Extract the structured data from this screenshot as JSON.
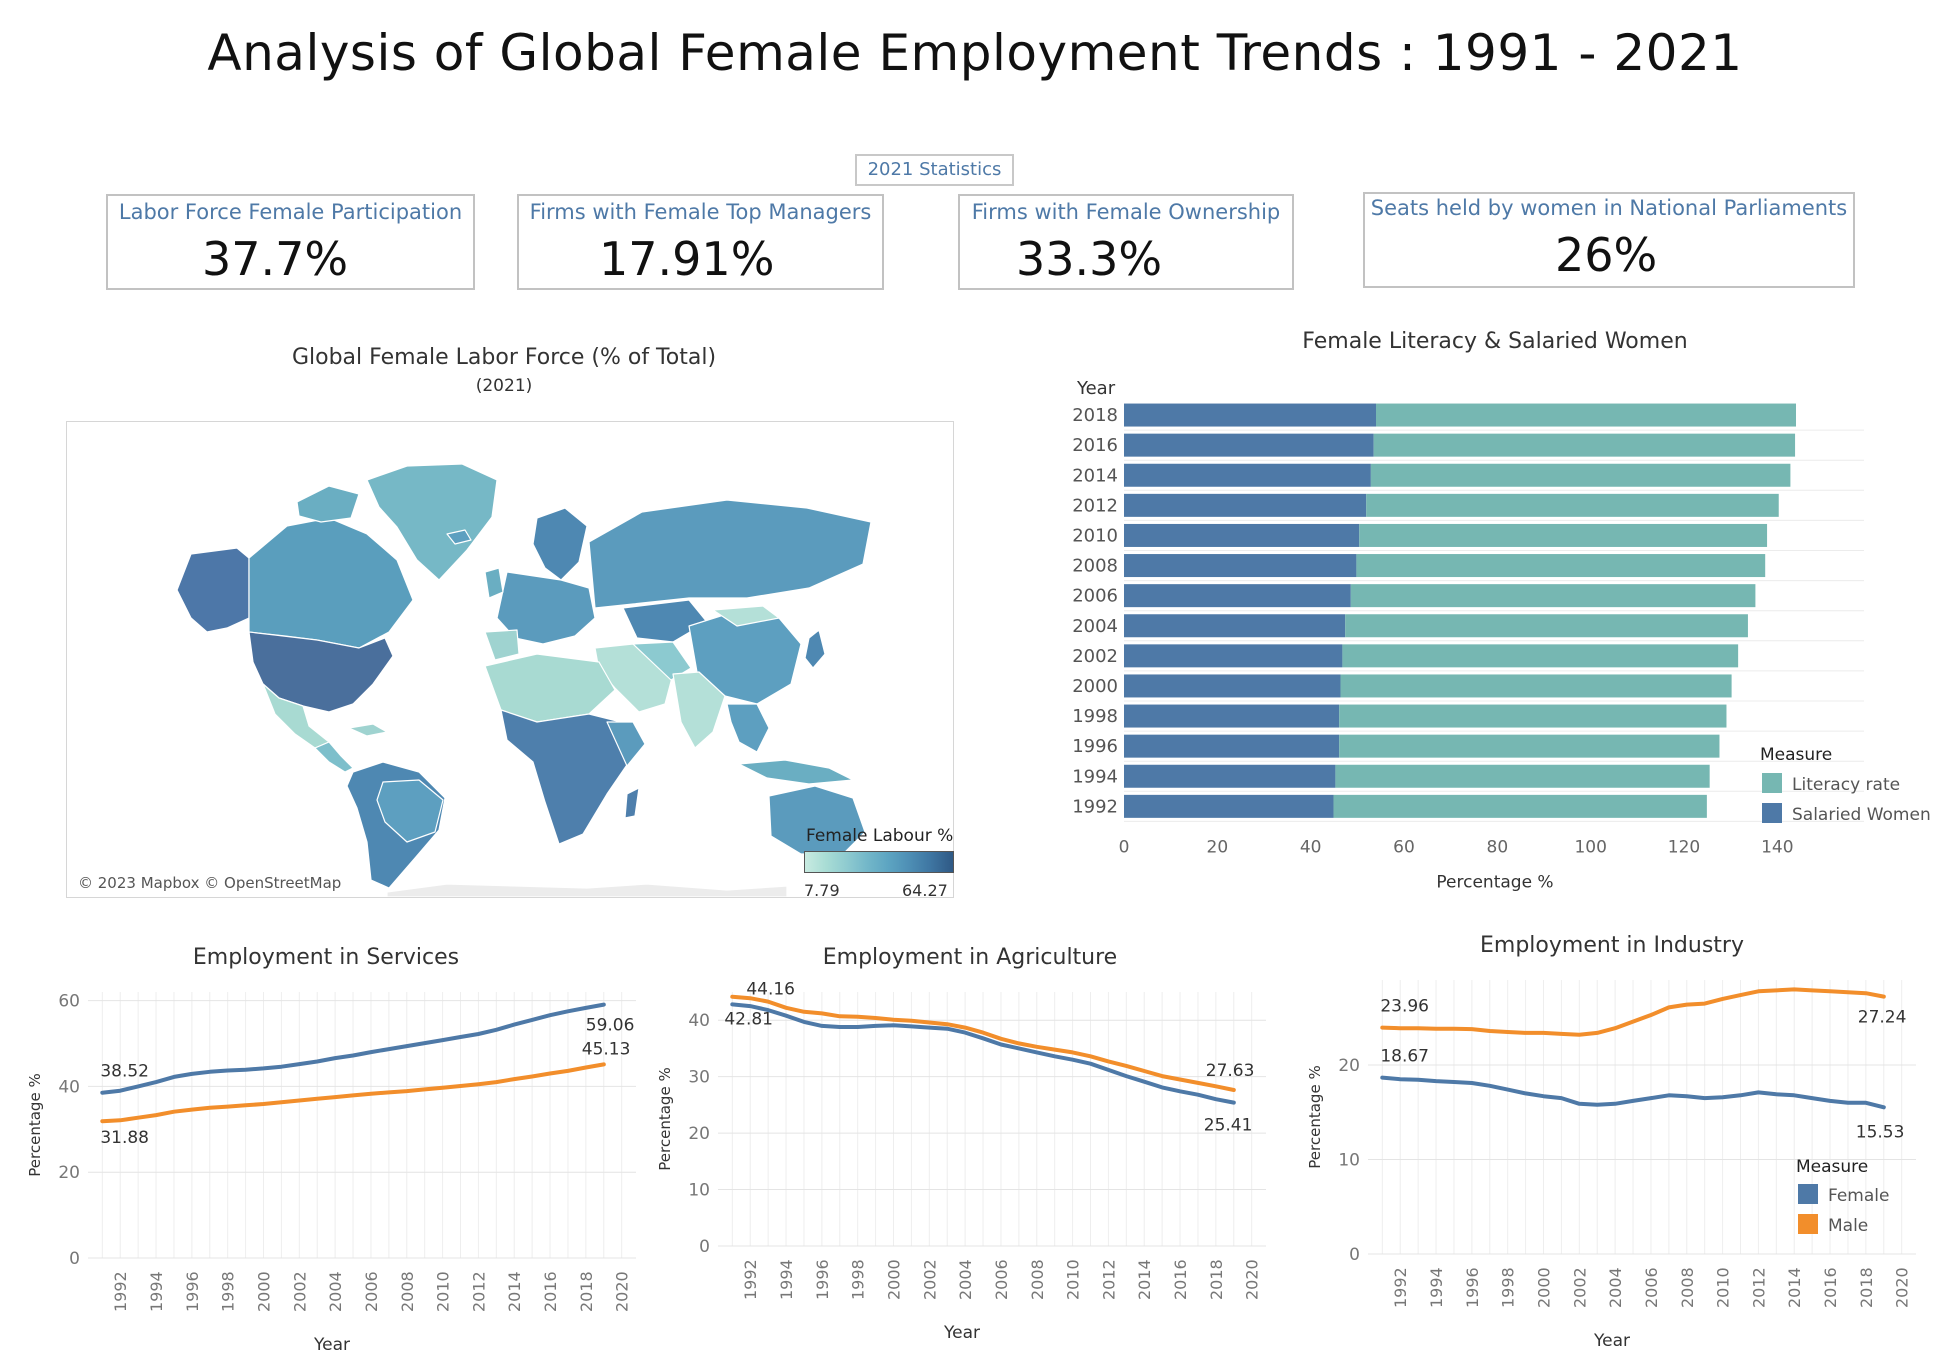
{
  "title": "Analysis of Global Female Employment Trends : 1991 - 2021",
  "stats_label": "2021 Statistics",
  "kpis": [
    {
      "label": "Labor Force Female Participation",
      "value": "37.7%"
    },
    {
      "label": "Firms with Female Top Managers",
      "value": "17.91%"
    },
    {
      "label": "Firms with Female Ownership",
      "value": "33.3%"
    },
    {
      "label": "Seats held by women in National Parliaments",
      "value": "26%"
    }
  ],
  "map": {
    "title": "Global Female Labor Force  (% of Total)",
    "subtitle": "(2021)",
    "credit": "© 2023 Mapbox © OpenStreetMap",
    "legend_title": "Female Labour %",
    "legend_min": "7.79",
    "legend_max": "64.27",
    "colors": {
      "low": "#c8ebe1",
      "high": "#2f5985"
    }
  },
  "chart_data": [
    {
      "type": "bar",
      "stacked": true,
      "orientation": "horizontal",
      "title": "Female Literacy & Salaried Women",
      "ylabel": "Year",
      "xlabel": "Percentage %",
      "categories": [
        "2018",
        "2016",
        "2014",
        "2012",
        "2010",
        "2008",
        "2006",
        "2004",
        "2002",
        "2000",
        "1998",
        "1996",
        "1994",
        "1992"
      ],
      "series": [
        {
          "name": "Salaried Women",
          "color": "#4e79a7",
          "values": [
            54.0,
            53.5,
            52.9,
            51.9,
            50.4,
            49.8,
            48.6,
            47.4,
            46.8,
            46.4,
            46.1,
            46.1,
            45.3,
            44.9
          ]
        },
        {
          "name": "Literacy rate",
          "color": "#76b7b2",
          "values": [
            90.0,
            90.3,
            89.9,
            88.4,
            87.4,
            87.6,
            86.7,
            86.3,
            84.8,
            83.8,
            83.0,
            81.5,
            80.2,
            80.0
          ]
        }
      ],
      "xticks": [
        0,
        20,
        40,
        60,
        80,
        100,
        120,
        140
      ],
      "xlim": [
        0,
        150
      ],
      "legend_title": "Measure",
      "legend": [
        "Literacy rate",
        "Salaried Women"
      ]
    },
    {
      "type": "line",
      "title": "Employment in Services",
      "xlabel": "Year",
      "ylabel": "Percentage %",
      "ylim": [
        0,
        62
      ],
      "yticks": [
        0,
        20,
        40,
        60
      ],
      "xticks": [
        "1992",
        "1994",
        "1996",
        "1998",
        "2000",
        "2002",
        "2004",
        "2006",
        "2008",
        "2010",
        "2012",
        "2014",
        "2016",
        "2018",
        "2020"
      ],
      "x": [
        1991,
        1992,
        1993,
        1994,
        1995,
        1996,
        1997,
        1998,
        1999,
        2000,
        2001,
        2002,
        2003,
        2004,
        2005,
        2006,
        2007,
        2008,
        2009,
        2010,
        2011,
        2012,
        2013,
        2014,
        2015,
        2016,
        2017,
        2018,
        2019
      ],
      "series": [
        {
          "name": "Female",
          "color": "#4e79a7",
          "values": [
            38.52,
            39.0,
            40.0,
            41.0,
            42.2,
            42.9,
            43.4,
            43.7,
            43.9,
            44.2,
            44.6,
            45.2,
            45.8,
            46.6,
            47.2,
            48.0,
            48.7,
            49.4,
            50.1,
            50.8,
            51.5,
            52.2,
            53.2,
            54.4,
            55.5,
            56.6,
            57.5,
            58.3,
            59.06
          ]
        },
        {
          "name": "Male",
          "color": "#f28e2b",
          "values": [
            31.88,
            32.1,
            32.7,
            33.3,
            34.1,
            34.6,
            35.0,
            35.3,
            35.6,
            35.9,
            36.3,
            36.7,
            37.1,
            37.5,
            37.9,
            38.3,
            38.6,
            38.9,
            39.3,
            39.7,
            40.1,
            40.5,
            41.0,
            41.7,
            42.3,
            43.0,
            43.6,
            44.4,
            45.13
          ]
        }
      ],
      "labels": {
        "female_start": "38.52",
        "female_end": "59.06",
        "male_start": "31.88",
        "male_end": "45.13"
      }
    },
    {
      "type": "line",
      "title": "Employment in Agriculture",
      "xlabel": "Year",
      "ylabel": "Percentage %",
      "ylim": [
        0,
        45
      ],
      "yticks": [
        0,
        10,
        20,
        30,
        40
      ],
      "xticks": [
        "1992",
        "1994",
        "1996",
        "1998",
        "2000",
        "2002",
        "2004",
        "2006",
        "2008",
        "2010",
        "2012",
        "2014",
        "2016",
        "2018",
        "2020"
      ],
      "x": [
        1991,
        1992,
        1993,
        1994,
        1995,
        1996,
        1997,
        1998,
        1999,
        2000,
        2001,
        2002,
        2003,
        2004,
        2005,
        2006,
        2007,
        2008,
        2009,
        2010,
        2011,
        2012,
        2013,
        2014,
        2015,
        2016,
        2017,
        2018,
        2019
      ],
      "series": [
        {
          "name": "Female",
          "color": "#4e79a7",
          "values": [
            42.81,
            42.5,
            41.8,
            40.8,
            39.7,
            39.0,
            38.8,
            38.8,
            39.0,
            39.1,
            38.9,
            38.7,
            38.5,
            37.8,
            36.8,
            35.7,
            35.0,
            34.3,
            33.6,
            33.0,
            32.3,
            31.2,
            30.1,
            29.1,
            28.1,
            27.4,
            26.8,
            26.0,
            25.41
          ]
        },
        {
          "name": "Male",
          "color": "#f28e2b",
          "values": [
            44.16,
            43.9,
            43.3,
            42.2,
            41.5,
            41.2,
            40.7,
            40.6,
            40.4,
            40.1,
            39.9,
            39.6,
            39.3,
            38.7,
            37.8,
            36.7,
            35.9,
            35.3,
            34.8,
            34.3,
            33.6,
            32.7,
            31.9,
            31.0,
            30.1,
            29.5,
            28.9,
            28.3,
            27.63
          ]
        }
      ],
      "labels": {
        "female_start": "42.81",
        "female_end": "25.41",
        "male_start": "44.16",
        "male_end": "27.63"
      }
    },
    {
      "type": "line",
      "title": "Employment in Industry",
      "xlabel": "Year",
      "ylabel": "Percentage %",
      "ylim": [
        0,
        29
      ],
      "yticks": [
        0,
        10,
        20
      ],
      "xticks": [
        "1992",
        "1994",
        "1996",
        "1998",
        "2000",
        "2002",
        "2004",
        "2006",
        "2008",
        "2010",
        "2012",
        "2014",
        "2016",
        "2018",
        "2020"
      ],
      "x": [
        1991,
        1992,
        1993,
        1994,
        1995,
        1996,
        1997,
        1998,
        1999,
        2000,
        2001,
        2002,
        2003,
        2004,
        2005,
        2006,
        2007,
        2008,
        2009,
        2010,
        2011,
        2012,
        2013,
        2014,
        2015,
        2016,
        2017,
        2018,
        2019
      ],
      "series": [
        {
          "name": "Female",
          "color": "#4e79a7",
          "values": [
            18.67,
            18.5,
            18.45,
            18.3,
            18.2,
            18.1,
            17.8,
            17.4,
            17.0,
            16.7,
            16.5,
            15.9,
            15.8,
            15.9,
            16.2,
            16.5,
            16.8,
            16.7,
            16.5,
            16.6,
            16.8,
            17.1,
            16.9,
            16.8,
            16.5,
            16.2,
            16.0,
            16.0,
            15.53
          ]
        },
        {
          "name": "Male",
          "color": "#f28e2b",
          "values": [
            23.96,
            23.9,
            23.9,
            23.85,
            23.85,
            23.8,
            23.6,
            23.5,
            23.4,
            23.4,
            23.3,
            23.2,
            23.4,
            23.9,
            24.6,
            25.3,
            26.1,
            26.4,
            26.5,
            27.0,
            27.4,
            27.8,
            27.9,
            28.0,
            27.9,
            27.8,
            27.7,
            27.6,
            27.24
          ]
        }
      ],
      "labels": {
        "female_start": "18.67",
        "female_end": "15.53",
        "male_start": "23.96",
        "male_end": "27.24"
      },
      "legend_title": "Measure",
      "legend": [
        "Female",
        "Male"
      ]
    }
  ]
}
